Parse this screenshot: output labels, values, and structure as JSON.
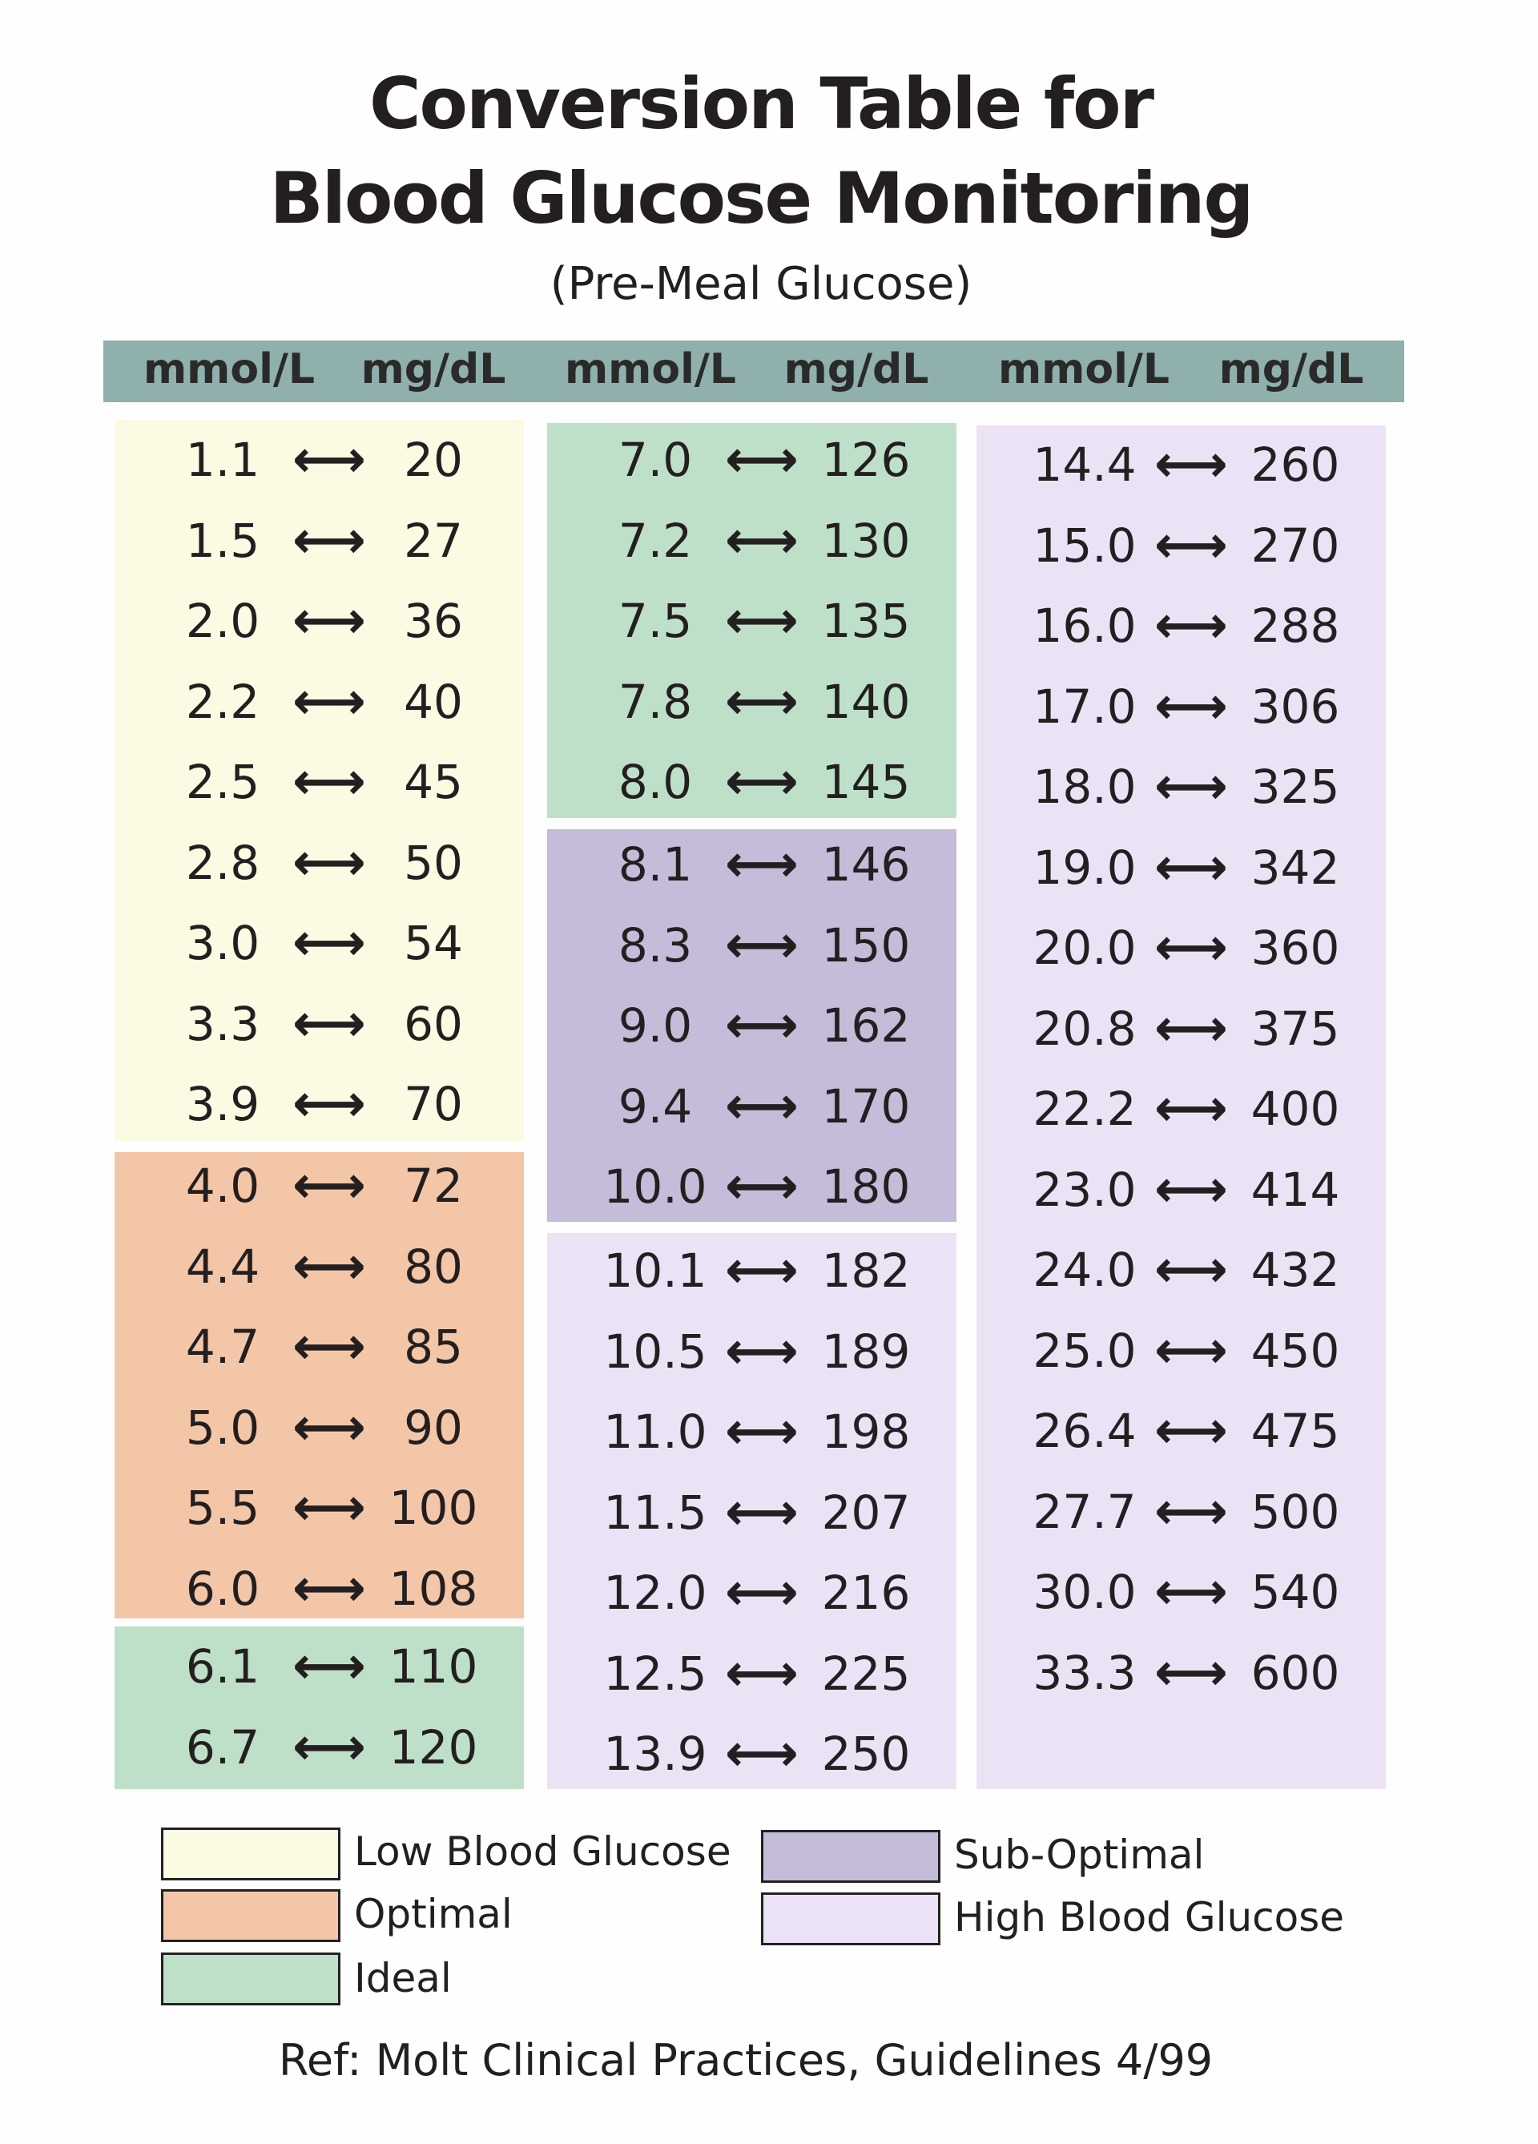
{
  "title": {
    "line1": "Conversion Table for",
    "line2": "Blood Glucose Monitoring",
    "subtitle": "(Pre-Meal Glucose)"
  },
  "header": {
    "labels": [
      "mmol/L",
      "mg/dL",
      "mmol/L",
      "mg/dL",
      "mmol/L",
      "mg/dL"
    ]
  },
  "arrow": "⟷",
  "colors": {
    "low": "#fbfbe3",
    "optimal": "#f3c6a8",
    "ideal": "#bfe0c8",
    "sub_optimal": "#c4bcd8",
    "high": "#ece2f6",
    "header": "#8fb0ad"
  },
  "columns": [
    [
      {
        "category": "low",
        "rows": [
          [
            "1.1",
            "20"
          ],
          [
            "1.5",
            "27"
          ],
          [
            "2.0",
            "36"
          ],
          [
            "2.2",
            "40"
          ],
          [
            "2.5",
            "45"
          ],
          [
            "2.8",
            "50"
          ],
          [
            "3.0",
            "54"
          ],
          [
            "3.3",
            "60"
          ],
          [
            "3.9",
            "70"
          ]
        ]
      },
      {
        "category": "optimal",
        "rows": [
          [
            "4.0",
            "72"
          ],
          [
            "4.4",
            "80"
          ],
          [
            "4.7",
            "85"
          ],
          [
            "5.0",
            "90"
          ],
          [
            "5.5",
            "100"
          ],
          [
            "6.0",
            "108"
          ]
        ]
      },
      {
        "category": "ideal",
        "rows": [
          [
            "6.1",
            "110"
          ],
          [
            "6.7",
            "120"
          ]
        ]
      }
    ],
    [
      {
        "category": "ideal",
        "rows": [
          [
            "7.0",
            "126"
          ],
          [
            "7.2",
            "130"
          ],
          [
            "7.5",
            "135"
          ],
          [
            "7.8",
            "140"
          ],
          [
            "8.0",
            "145"
          ]
        ]
      },
      {
        "category": "sub_optimal",
        "rows": [
          [
            "8.1",
            "146"
          ],
          [
            "8.3",
            "150"
          ],
          [
            "9.0",
            "162"
          ],
          [
            "9.4",
            "170"
          ],
          [
            "10.0",
            "180"
          ]
        ]
      },
      {
        "category": "high",
        "rows": [
          [
            "10.1",
            "182"
          ],
          [
            "10.5",
            "189"
          ],
          [
            "11.0",
            "198"
          ],
          [
            "11.5",
            "207"
          ],
          [
            "12.0",
            "216"
          ],
          [
            "12.5",
            "225"
          ],
          [
            "13.9",
            "250"
          ]
        ]
      }
    ],
    [
      {
        "category": "high",
        "rows": [
          [
            "14.4",
            "260"
          ],
          [
            "15.0",
            "270"
          ],
          [
            "16.0",
            "288"
          ],
          [
            "17.0",
            "306"
          ],
          [
            "18.0",
            "325"
          ],
          [
            "19.0",
            "342"
          ],
          [
            "20.0",
            "360"
          ],
          [
            "20.8",
            "375"
          ],
          [
            "22.2",
            "400"
          ],
          [
            "23.0",
            "414"
          ],
          [
            "24.0",
            "432"
          ],
          [
            "25.0",
            "450"
          ],
          [
            "26.4",
            "475"
          ],
          [
            "27.7",
            "500"
          ],
          [
            "30.0",
            "540"
          ],
          [
            "33.3",
            "600"
          ]
        ]
      }
    ]
  ],
  "legend": [
    {
      "label": "Low Blood Glucose",
      "category": "low"
    },
    {
      "label": "Optimal",
      "category": "optimal"
    },
    {
      "label": "Ideal",
      "category": "ideal"
    },
    {
      "label": "Sub-Optimal",
      "category": "sub_optimal"
    },
    {
      "label": "High Blood Glucose",
      "category": "high"
    }
  ],
  "reference": "Ref: Molt Clinical Practices, Guidelines 4/99"
}
